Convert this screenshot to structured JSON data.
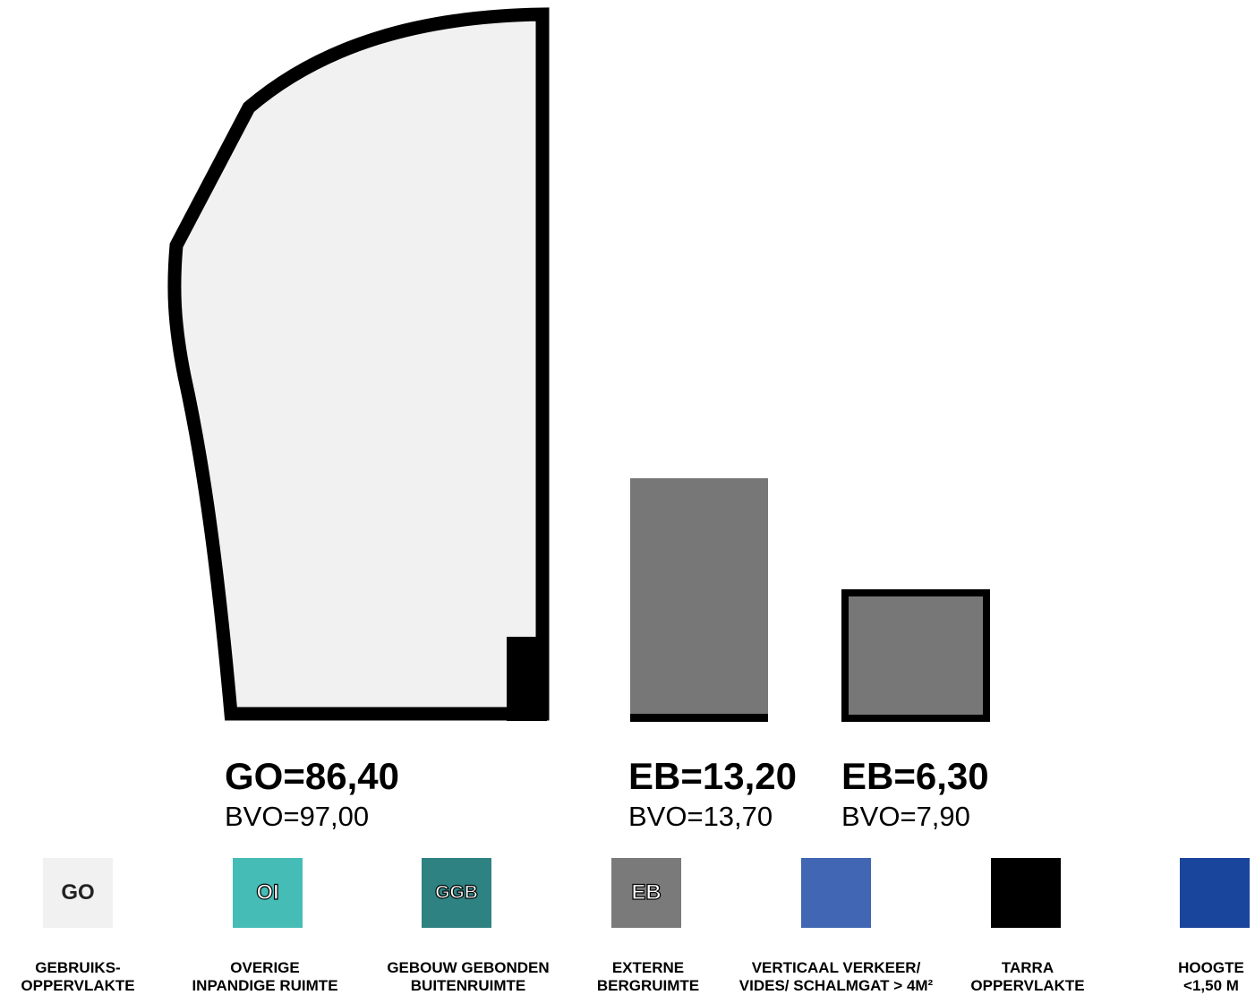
{
  "areas": [
    {
      "code": "GO=86,40",
      "bvo": "BVO=97,00"
    },
    {
      "code": "EB=13,20",
      "bvo": "BVO=13,70"
    },
    {
      "code": "EB=6,30",
      "bvo": "BVO=7,90"
    }
  ],
  "legend": [
    {
      "abbr": "GO",
      "color": "#f1f1f1",
      "line1": "GEBRUIKS-",
      "line2": "OPPERVLAKTE"
    },
    {
      "abbr": "OI",
      "color": "#46bcb6",
      "line1": "OVERIGE",
      "line2": "INPANDIGE RUIMTE"
    },
    {
      "abbr": "GGB",
      "color": "#2e8282",
      "line1": "GEBOUW GEBONDEN",
      "line2": "BUITENRUIMTE"
    },
    {
      "abbr": "EB",
      "color": "#7a7a7a",
      "line1": "EXTERNE",
      "line2": "BERGRUIMTE"
    },
    {
      "abbr": "",
      "color": "#4166b4",
      "line1": "VERTICAAL VERKEER/",
      "line2": "VIDES/ SCHALMGAT > 4M²"
    },
    {
      "abbr": "",
      "color": "#000000",
      "line1": "TARRA",
      "line2": "OPPERVLAKTE"
    },
    {
      "abbr": "",
      "color": "#1a459c",
      "line1": "HOOGTE",
      "line2": "<1,50 M"
    }
  ]
}
